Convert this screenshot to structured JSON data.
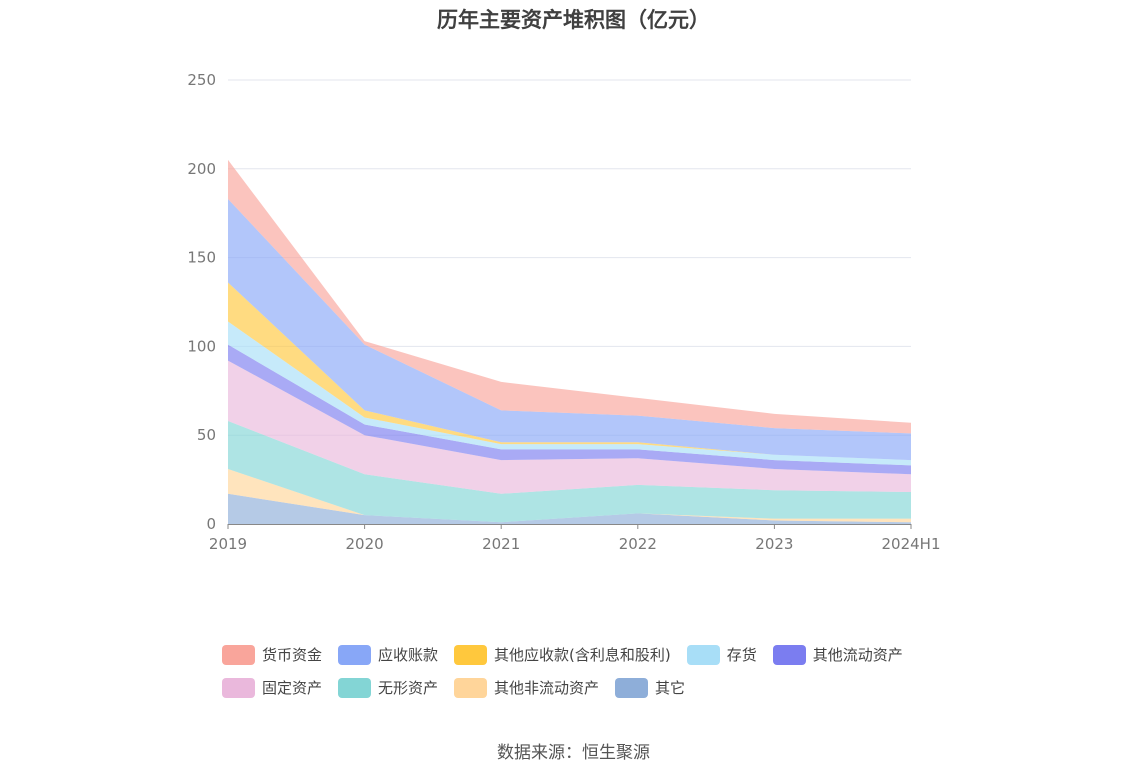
{
  "chart_data": {
    "type": "area",
    "stacked": true,
    "title": "历年主要资产堆积图（亿元）",
    "xlabel": "",
    "ylabel": "",
    "ylim": [
      0,
      250
    ],
    "yticks": [
      0,
      50,
      100,
      150,
      200,
      250
    ],
    "categories": [
      "2019",
      "2020",
      "2021",
      "2022",
      "2023",
      "2024H1"
    ],
    "grid": true,
    "legend_position": "bottom",
    "series": [
      {
        "name": "其它",
        "color": "#8eaed9",
        "values": [
          17,
          5,
          1,
          6,
          2,
          1
        ]
      },
      {
        "name": "其他非流动资产",
        "color": "#ffd59a",
        "values": [
          14,
          0,
          0,
          0,
          1,
          2
        ]
      },
      {
        "name": "无形资产",
        "color": "#83d5d5",
        "values": [
          27,
          23,
          16,
          16,
          16,
          15
        ]
      },
      {
        "name": "固定资产",
        "color": "#eab8dc",
        "values": [
          34,
          22,
          19,
          15,
          12,
          10
        ]
      },
      {
        "name": "其他流动资产",
        "color": "#7b7df0",
        "values": [
          9,
          6,
          6,
          5,
          5,
          5
        ]
      },
      {
        "name": "存货",
        "color": "#a8def7",
        "values": [
          13,
          4,
          3,
          3,
          3,
          3
        ]
      },
      {
        "name": "其他应收款(含利息和股利)",
        "color": "#ffc83d",
        "values": [
          22,
          4,
          1,
          1,
          0,
          0
        ]
      },
      {
        "name": "应收账款",
        "color": "#88a7f7",
        "values": [
          47,
          37,
          18,
          15,
          15,
          15
        ]
      },
      {
        "name": "货币资金",
        "color": "#f9a59b",
        "values": [
          22,
          2,
          16,
          10,
          8,
          6
        ]
      }
    ]
  },
  "legend": {
    "row1": [
      "货币资金",
      "应收账款",
      "其他应收款(含利息和股利)",
      "存货",
      "其他流动资产"
    ],
    "row2": [
      "固定资产",
      "无形资产",
      "其他非流动资产",
      "其它"
    ]
  },
  "colors": {
    "货币资金": "#f9a59b",
    "应收账款": "#88a7f7",
    "其他应收款(含利息和股利)": "#ffc83d",
    "存货": "#a8def7",
    "其他流动资产": "#7b7df0",
    "固定资产": "#eab8dc",
    "无形资产": "#83d5d5",
    "其他非流动资产": "#ffd59a",
    "其它": "#8eaed9"
  },
  "source_text": "数据来源：恒生聚源"
}
